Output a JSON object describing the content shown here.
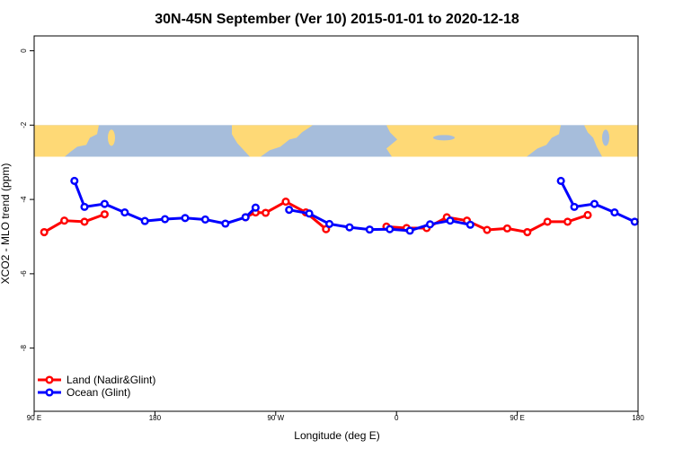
{
  "chart_data": {
    "type": "line",
    "title": "30N-45N September (Ver 10)   2015-01-01 to 2020-12-18",
    "xlabel": "Longitude (deg E)",
    "ylabel": "XCO2 - MLO trend (ppm)",
    "xlim": [
      90,
      540
    ],
    "ylim": [
      -9.7,
      0.4
    ],
    "x_ticks": [
      {
        "value": 90,
        "label": "90 E"
      },
      {
        "value": 180,
        "label": "180"
      },
      {
        "value": 270,
        "label": "90 W"
      },
      {
        "value": 360,
        "label": "0"
      },
      {
        "value": 450,
        "label": "90 E"
      },
      {
        "value": 540,
        "label": "180"
      }
    ],
    "y_ticks": [
      {
        "value": 0,
        "label": "0"
      },
      {
        "value": -2,
        "label": "-2"
      },
      {
        "value": -4,
        "label": "-4"
      },
      {
        "value": -6,
        "label": "-6"
      },
      {
        "value": -8,
        "label": "-8"
      }
    ],
    "grid": false,
    "legend_position": "bottom-left",
    "map_band": {
      "y_top": -2.0,
      "y_bottom": -2.85,
      "ocean_color": "#a6bddb",
      "land_color": "#fed976"
    },
    "series": [
      {
        "name": "Land (Nadir&Glint)",
        "color": "#ff0000",
        "segments": [
          [
            [
              97.5,
              -4.88
            ],
            [
              112.5,
              -4.57
            ],
            [
              127.5,
              -4.6
            ],
            [
              142.5,
              -4.4
            ]
          ],
          [
            [
              247.5,
              -4.48
            ],
            [
              255,
              -4.35
            ],
            [
              262.5,
              -4.36
            ],
            [
              277.5,
              -4.06
            ],
            [
              292.5,
              -4.35
            ],
            [
              307.5,
              -4.8
            ]
          ],
          [
            [
              352.5,
              -4.73
            ],
            [
              367.5,
              -4.77
            ],
            [
              382.5,
              -4.77
            ],
            [
              397.5,
              -4.48
            ],
            [
              412.5,
              -4.57
            ],
            [
              427.5,
              -4.82
            ],
            [
              442.5,
              -4.78
            ],
            [
              457.5,
              -4.88
            ],
            [
              472.5,
              -4.6
            ],
            [
              487.5,
              -4.6
            ],
            [
              502.5,
              -4.42
            ]
          ]
        ]
      },
      {
        "name": "Ocean (Glint)",
        "color": "#0000ff",
        "segments": [
          [
            [
              120,
              -3.5
            ],
            [
              127.5,
              -4.2
            ],
            [
              142.5,
              -4.12
            ],
            [
              157.5,
              -4.35
            ],
            [
              172.5,
              -4.58
            ],
            [
              187.5,
              -4.53
            ],
            [
              202.5,
              -4.5
            ],
            [
              217.5,
              -4.54
            ],
            [
              232.5,
              -4.65
            ],
            [
              247.5,
              -4.48
            ],
            [
              255,
              -4.22
            ]
          ],
          [
            [
              280,
              -4.28
            ],
            [
              295,
              -4.38
            ],
            [
              310,
              -4.66
            ],
            [
              325,
              -4.75
            ],
            [
              340,
              -4.81
            ],
            [
              355,
              -4.8
            ],
            [
              370,
              -4.84
            ],
            [
              385,
              -4.67
            ],
            [
              400,
              -4.57
            ],
            [
              415,
              -4.68
            ]
          ],
          [
            [
              482.5,
              -3.5
            ],
            [
              492.5,
              -4.2
            ],
            [
              507.5,
              -4.12
            ],
            [
              522.5,
              -4.35
            ],
            [
              537.5,
              -4.6
            ]
          ]
        ]
      }
    ]
  }
}
